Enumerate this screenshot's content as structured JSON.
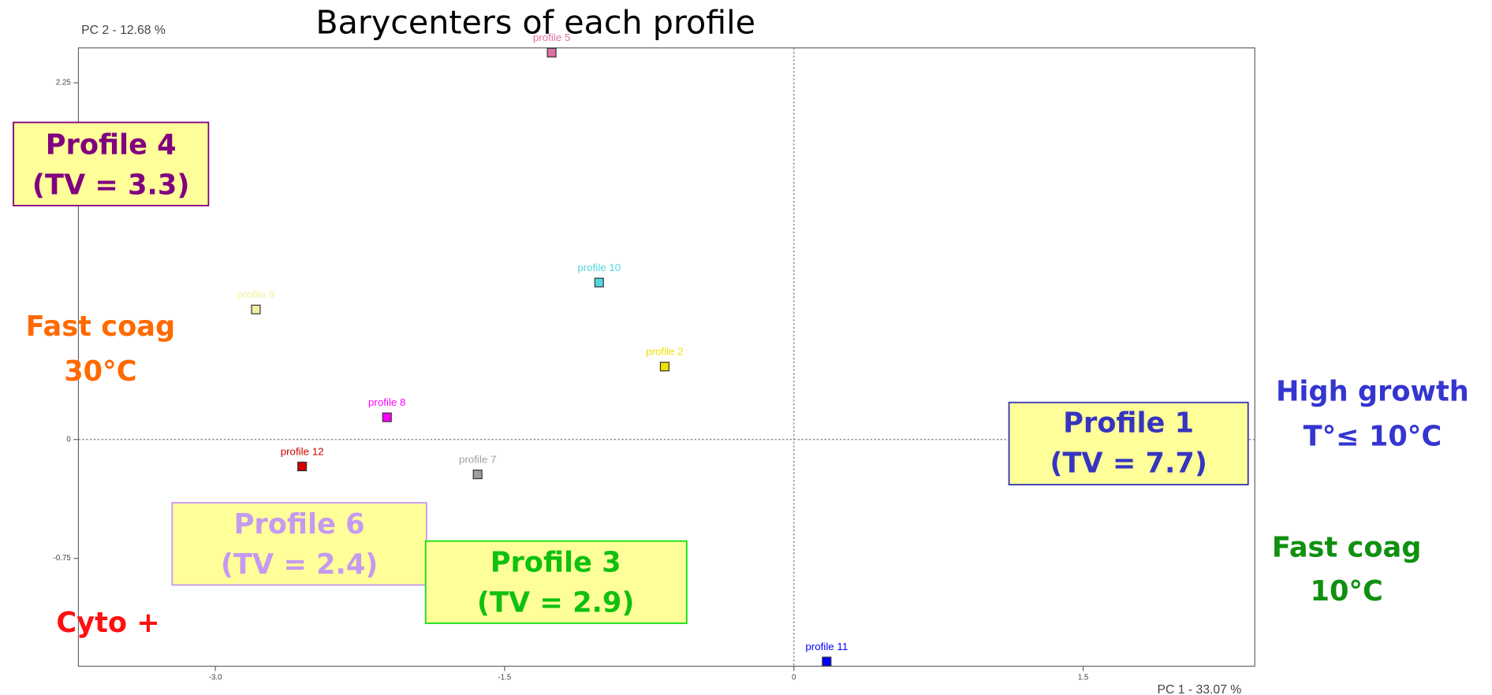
{
  "chart_data": {
    "type": "scatter",
    "title": "Barycenters of each profile",
    "xlabel": "PC 1 - 33.07 %",
    "ylabel": "PC 2 - 12.68 %",
    "xlim": [
      -3.71,
      2.39
    ],
    "ylim": [
      -1.43,
      2.47
    ],
    "xticks": [
      {
        "value": -3,
        "label": "-3.0"
      },
      {
        "value": -1.5,
        "label": "-1.5"
      },
      0,
      {
        "value": 1.5,
        "label": "1.5"
      }
    ],
    "yticks": [
      2.25,
      0,
      -0.75
    ],
    "grid": false,
    "series": [
      {
        "name": "profile 5",
        "color": "#e070a0",
        "x": [
          -1.256
        ],
        "values": [
          2.44
        ]
      },
      {
        "name": "profile 10",
        "color": "#50d8e0",
        "x": [
          -1.01
        ],
        "values": [
          0.99
        ]
      },
      {
        "name": "profile 9",
        "color": "#f0f0a0",
        "x": [
          -2.79
        ],
        "values": [
          0.82
        ]
      },
      {
        "name": "profile 2",
        "color": "#f0e000",
        "x": [
          -0.67
        ],
        "values": [
          0.46
        ]
      },
      {
        "name": "profile 8",
        "color": "#ff00ff",
        "x": [
          -2.11
        ],
        "values": [
          0.14
        ]
      },
      {
        "name": "profile 12",
        "color": "#d00000",
        "x": [
          -2.55
        ],
        "values": [
          -0.17
        ]
      },
      {
        "name": "profile 7",
        "color": "#a0a0a0",
        "x": [
          -1.64
        ],
        "values": [
          -0.22
        ]
      },
      {
        "name": "profile 11",
        "color": "#0000ff",
        "x": [
          0.17
        ],
        "values": [
          -1.4
        ]
      }
    ],
    "annotations": [
      {
        "lines": [
          "Profile 4",
          "(TV = 3.3)"
        ],
        "color": "#800080",
        "box_color": "#800080",
        "box_fill": "#ffff99"
      },
      {
        "lines": [
          "Profile 6",
          "(TV = 2.4)"
        ],
        "color": "#c59af0",
        "box_color": "#c59af0",
        "box_fill": "#ffff99"
      },
      {
        "lines": [
          "Profile 3",
          "(TV = 2.9)"
        ],
        "color": "#10c010",
        "box_color": "#10e010",
        "box_fill": "#ffff99"
      },
      {
        "lines": [
          "Profile 1",
          "(TV = 7.7)"
        ],
        "color": "#3535c0",
        "box_color": "#3535b0",
        "box_fill": "#ffff99"
      },
      {
        "lines": [
          "Fast coag",
          "30°C"
        ],
        "color": "#ff6a00"
      },
      {
        "lines": [
          "Cyto +"
        ],
        "color": "#ff1010"
      },
      {
        "lines": [
          "High growth",
          "T°≤ 10°C"
        ],
        "color": "#3535d0"
      },
      {
        "lines": [
          "Fast coag",
          "10°C"
        ],
        "color": "#109010"
      }
    ]
  }
}
